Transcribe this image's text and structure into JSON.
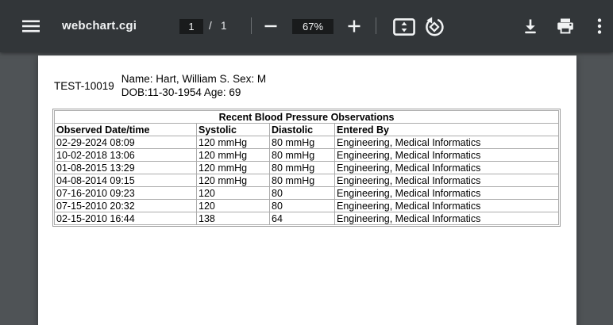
{
  "toolbar": {
    "title": "webchart.cgi",
    "page_current": "1",
    "page_separator": "/",
    "page_total": "1",
    "zoom_level": "67%",
    "icons": [
      "hamburger-menu",
      "zoom-out-minus",
      "zoom-in-plus",
      "fit-to-page",
      "rotate-counterclockwise",
      "download",
      "print",
      "more-options-dots"
    ]
  },
  "document": {
    "patient_id": "TEST-10019",
    "demographics_line1": "Name: Hart, William S. Sex: M",
    "demographics_line2": "DOB:11-30-1954 Age: 69",
    "table": {
      "title": "Recent Blood Pressure Observations",
      "columns": [
        "Observed Date/time",
        "Systolic",
        "Diastolic",
        "Entered By"
      ],
      "rows": [
        [
          "02-29-2024 08:09",
          "120 mmHg",
          "80 mmHg",
          "Engineering, Medical Informatics"
        ],
        [
          "10-02-2018 13:06",
          "120 mmHg",
          "80 mmHg",
          "Engineering, Medical Informatics"
        ],
        [
          "01-08-2015 13:29",
          "120 mmHg",
          "80 mmHg",
          "Engineering, Medical Informatics"
        ],
        [
          "04-08-2014 09:15",
          "120 mmHg",
          "80 mmHg",
          "Engineering, Medical Informatics"
        ],
        [
          "07-16-2010 09:23",
          "120",
          "80",
          "Engineering, Medical Informatics"
        ],
        [
          "07-15-2010 20:32",
          "120",
          "80",
          "Engineering, Medical Informatics"
        ],
        [
          "02-15-2010 16:44",
          "138",
          "64",
          "Engineering, Medical Informatics"
        ]
      ]
    }
  },
  "colors": {
    "toolbar_bg": "#323639",
    "viewer_bg": "#4f5356",
    "field_bg": "#191b1c",
    "icon_color": "#f1f3f4",
    "page_bg": "#ffffff",
    "table_border": "#acacac"
  }
}
